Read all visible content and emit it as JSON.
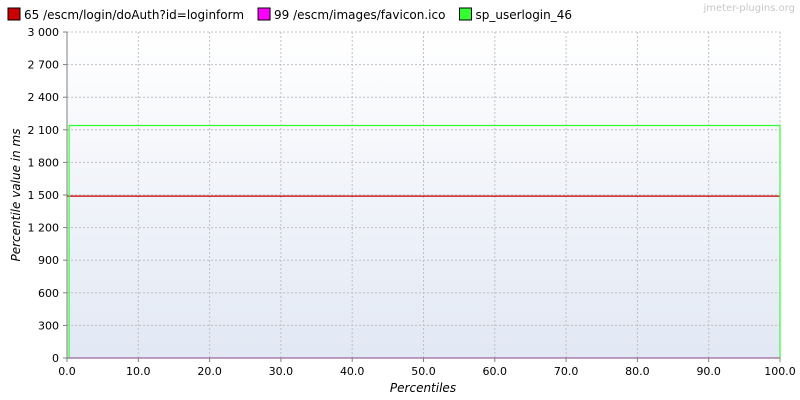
{
  "watermark": "jmeter-plugins.org",
  "chart_data": {
    "type": "line",
    "xlabel": "Percentiles",
    "ylabel": "Percentile value in ms",
    "xlim": [
      0,
      100
    ],
    "ylim": [
      0,
      3000
    ],
    "x_ticks": [
      0,
      10,
      20,
      30,
      40,
      50,
      60,
      70,
      80,
      90,
      100
    ],
    "x_tick_labels": [
      "0.0",
      "10.0",
      "20.0",
      "30.0",
      "40.0",
      "50.0",
      "60.0",
      "70.0",
      "80.0",
      "90.0",
      "100.0"
    ],
    "y_ticks": [
      0,
      300,
      600,
      900,
      1200,
      1500,
      1800,
      2100,
      2400,
      2700,
      3000
    ],
    "y_tick_labels": [
      "0",
      "300",
      "600",
      "900",
      "1 200",
      "1 500",
      "1 800",
      "2 100",
      "2 400",
      "2 700",
      "3 000"
    ],
    "grid": true,
    "legend_position": "top",
    "series": [
      {
        "name": "65 /escm/login/doAuth?id=loginform",
        "color": "#cc0000",
        "points": [
          [
            0,
            1490
          ],
          [
            100,
            1490
          ]
        ]
      },
      {
        "name": "99 /escm/images/favicon.ico",
        "color": "#ff00ff",
        "points": [
          [
            0,
            0
          ],
          [
            100,
            0
          ]
        ]
      },
      {
        "name": "sp_userlogin_46",
        "color": "#33ff33",
        "points": [
          [
            0,
            0
          ],
          [
            0.3,
            0
          ],
          [
            0.3,
            2140
          ],
          [
            100,
            2140
          ],
          [
            100,
            0
          ]
        ]
      }
    ]
  }
}
